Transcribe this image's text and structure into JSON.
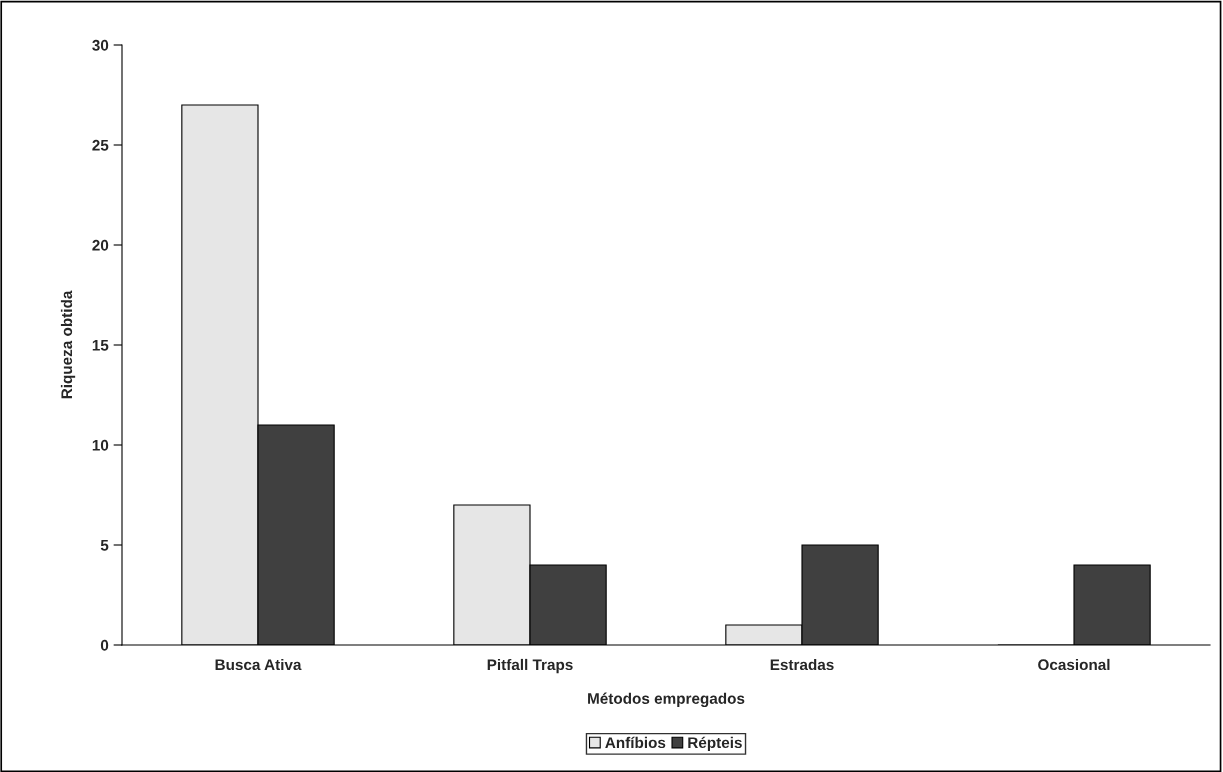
{
  "chart_data": {
    "type": "bar",
    "xlabel": "Métodos empregados",
    "ylabel": "Riqueza obtida",
    "categories": [
      "Busca Ativa",
      "Pitfall Traps",
      "Estradas",
      "Ocasional"
    ],
    "series": [
      {
        "name": "Anfíbios",
        "color": "#e6e6e6",
        "values": [
          27,
          7,
          1,
          0
        ]
      },
      {
        "name": "Répteis",
        "color": "#404040",
        "values": [
          11,
          4,
          5,
          4
        ]
      }
    ],
    "ylim": [
      0,
      30
    ],
    "yticks": [
      0,
      5,
      10,
      15,
      20,
      25,
      30
    ],
    "grid": false,
    "legend": "bottom"
  }
}
